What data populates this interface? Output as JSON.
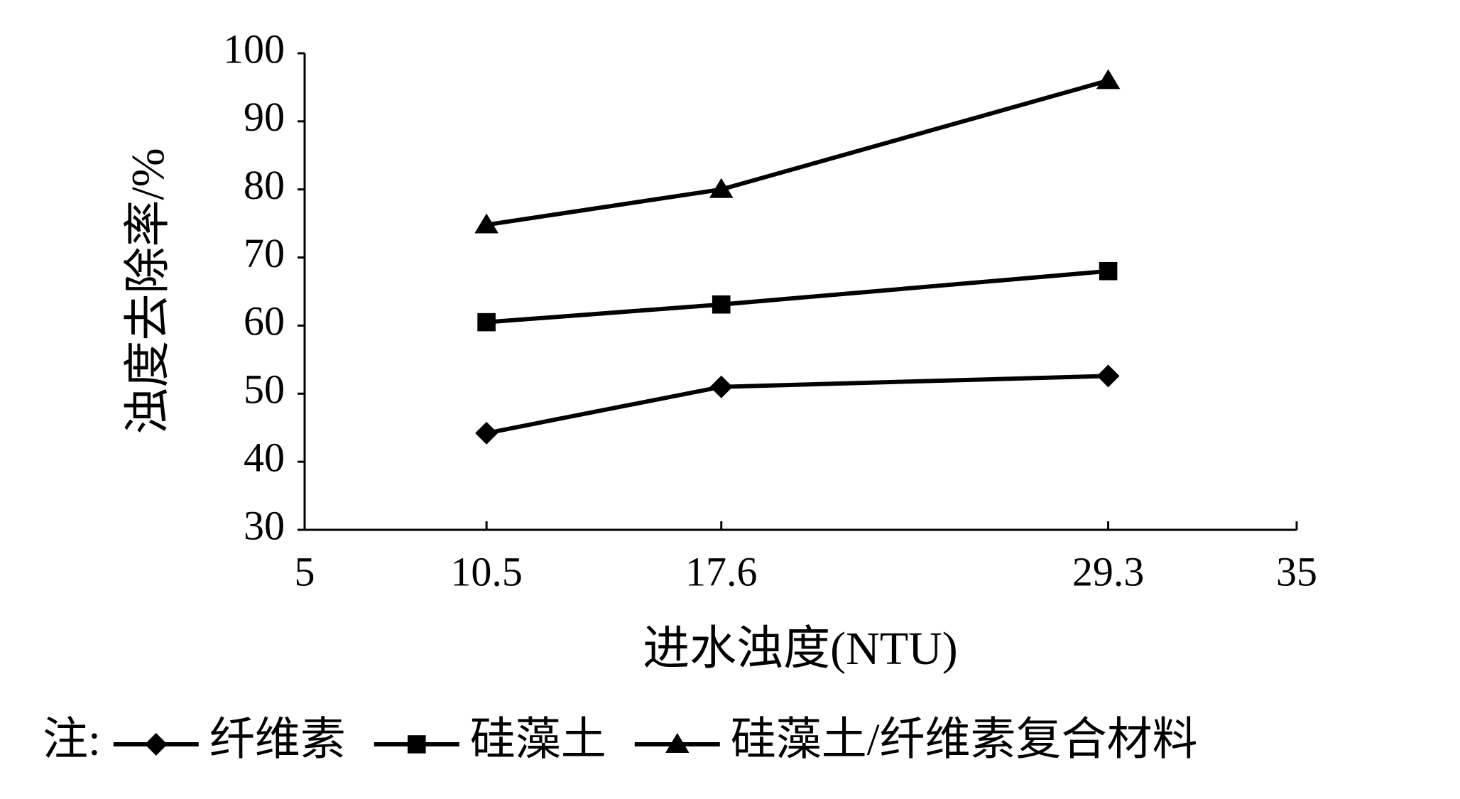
{
  "chart_data": {
    "type": "line",
    "y_label": "浊度去除率/%",
    "x_label": "进水浊度(NTU)",
    "legend_note": "注:",
    "x": [
      10.5,
      17.6,
      29.3
    ],
    "series": [
      {
        "name": "纤维素",
        "color": "#000000",
        "marker": "diamond",
        "values": [
          44.2,
          51,
          52.6
        ]
      },
      {
        "name": "硅藻土",
        "color": "#000000",
        "marker": "square",
        "values": [
          60.5,
          63.1,
          68
        ]
      },
      {
        "name": "硅藻土/纤维素复合材料",
        "color": "#000000",
        "marker": "triangle",
        "values": [
          74.8,
          80,
          96
        ]
      }
    ],
    "xlim": [
      5,
      35
    ],
    "xticks": [
      5,
      10.5,
      17.6,
      29.3,
      35
    ],
    "ylim": [
      30,
      100
    ],
    "yticks": [
      30,
      40,
      50,
      60,
      70,
      80,
      90,
      100
    ],
    "legend": "bottom",
    "grid": false
  }
}
